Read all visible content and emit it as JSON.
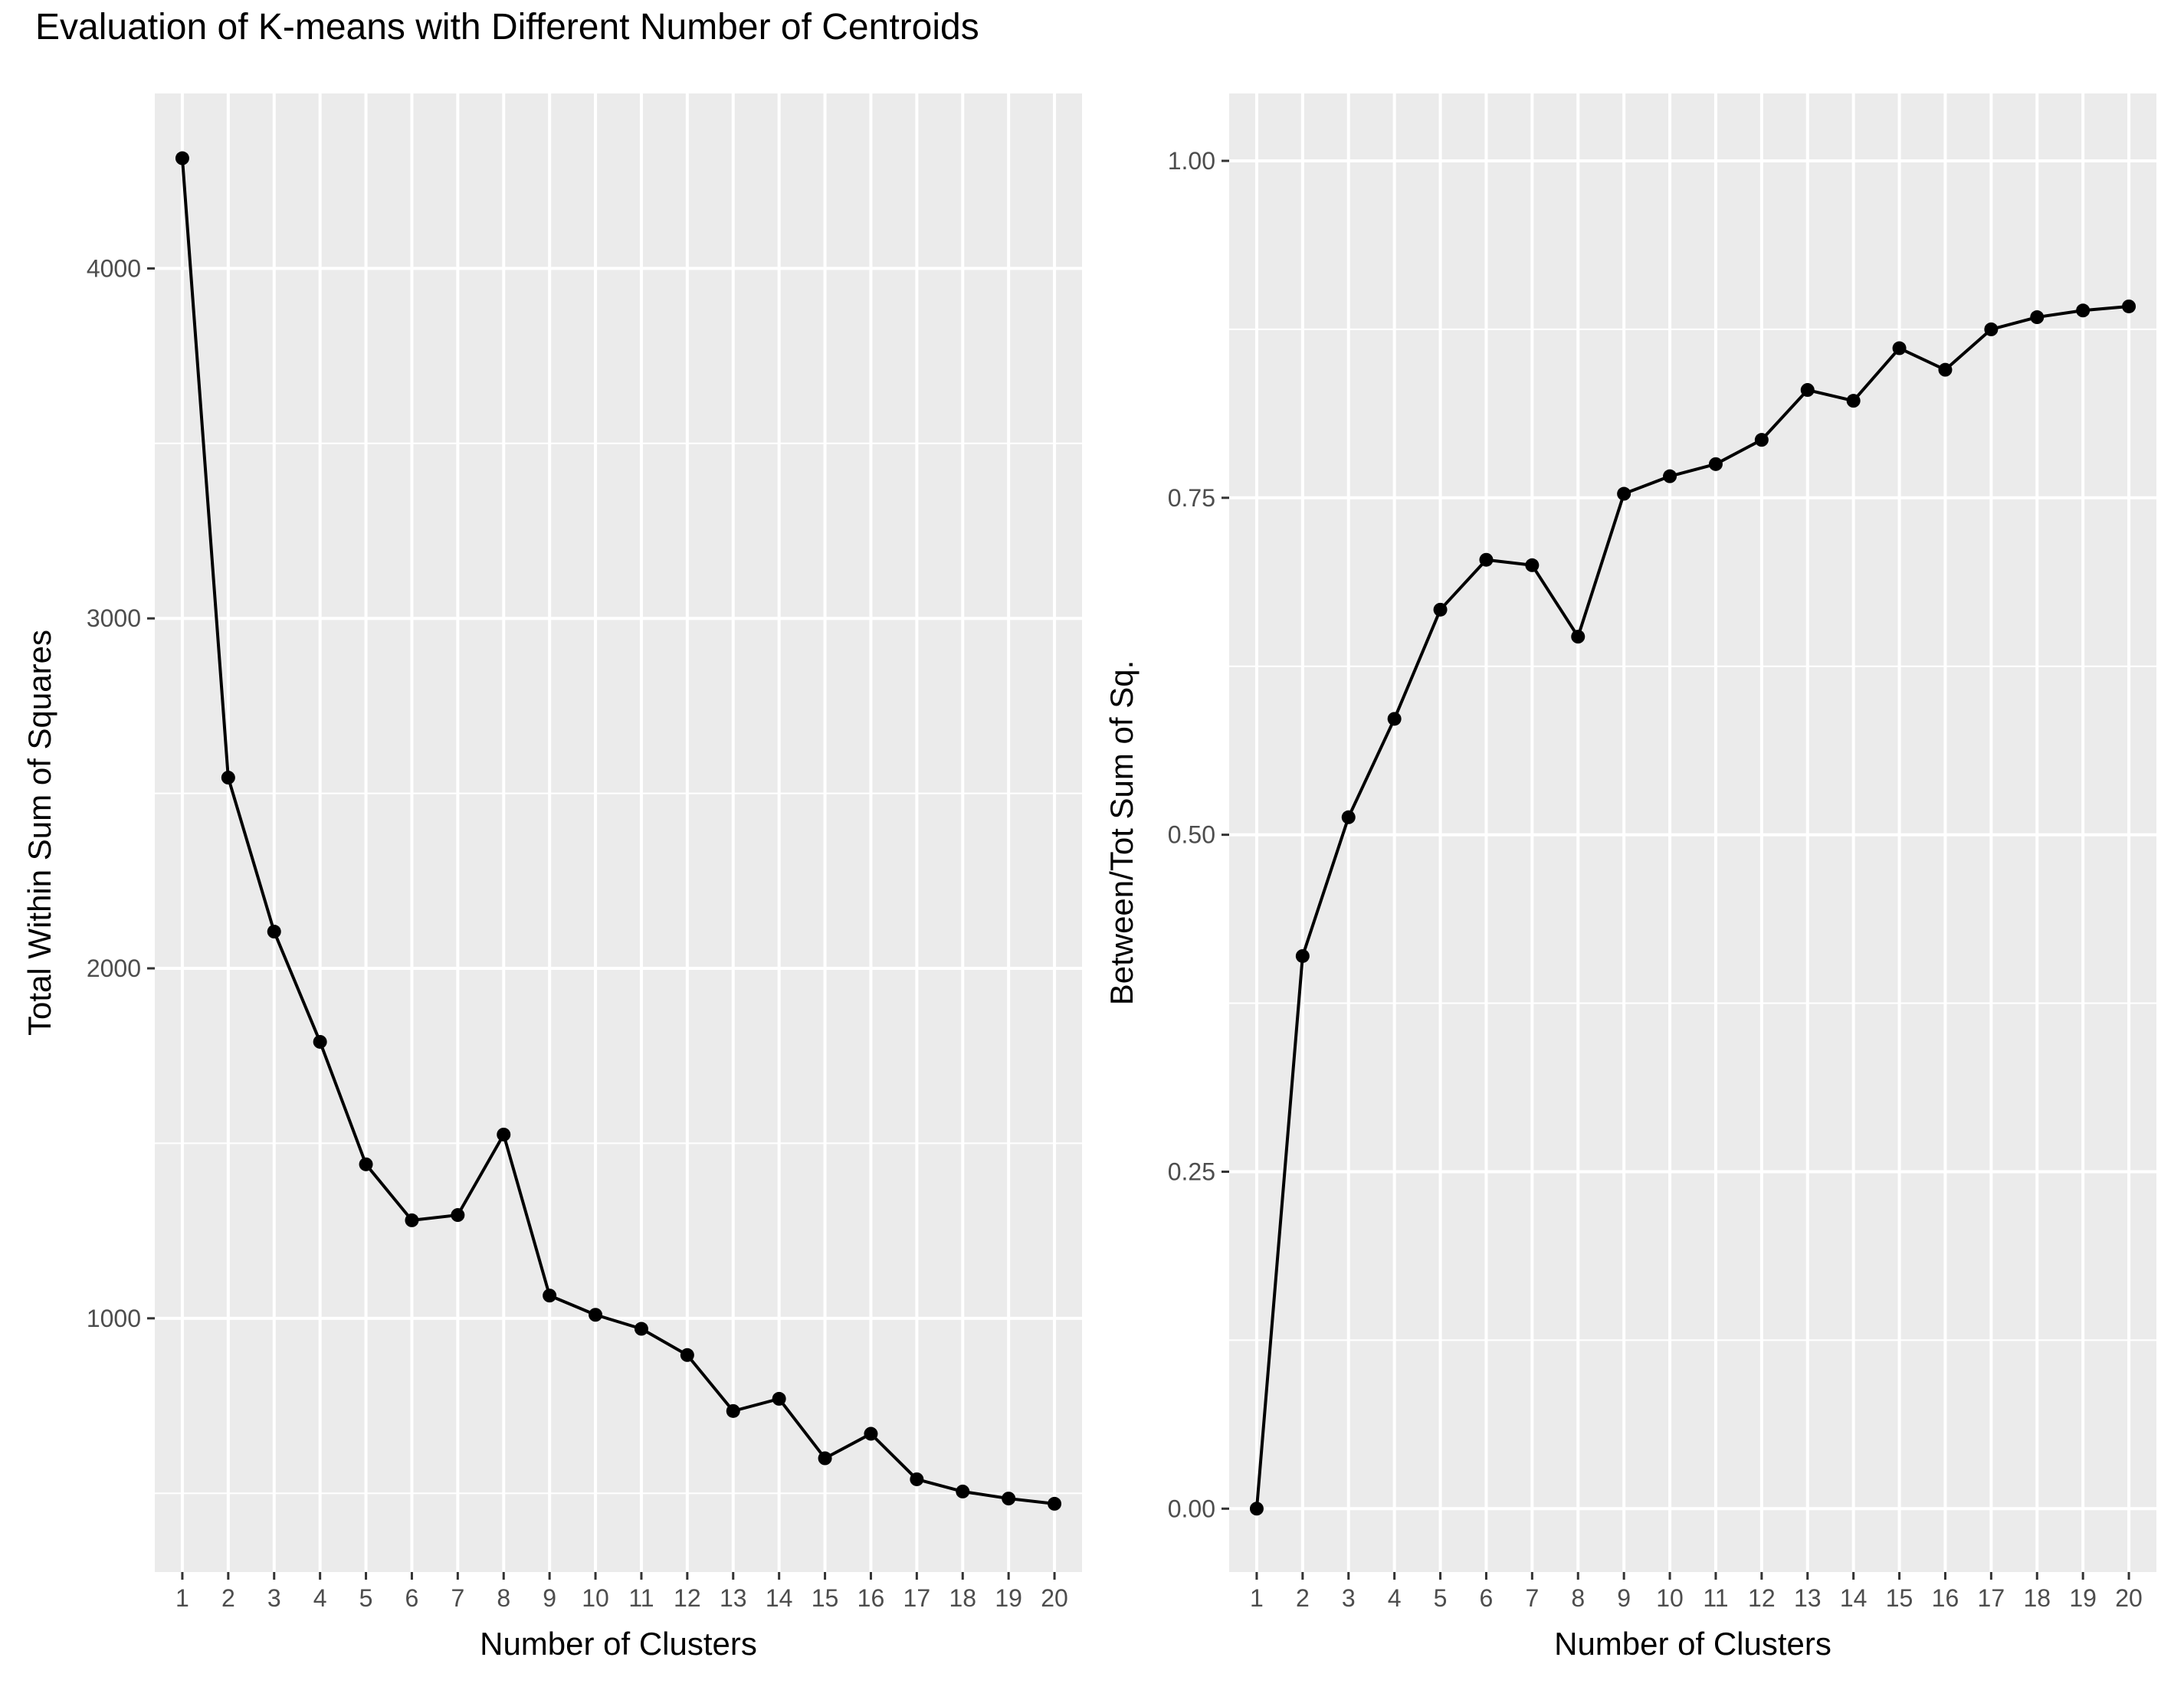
{
  "title": "Evaluation of K-means with Different Number of Centroids",
  "colors": {
    "panel": "#EBEBEB",
    "grid": "#FFFFFF",
    "line": "#000000",
    "tick_text": "#4D4D4D"
  },
  "chart_data": [
    {
      "type": "line",
      "xlabel": "Number of Clusters",
      "ylabel": "Total Within Sum of Squares",
      "x": [
        1,
        2,
        3,
        4,
        5,
        6,
        7,
        8,
        9,
        10,
        11,
        12,
        13,
        14,
        15,
        16,
        17,
        18,
        19,
        20
      ],
      "y": [
        4315,
        2545,
        2105,
        1790,
        1440,
        1280,
        1295,
        1525,
        1065,
        1010,
        970,
        895,
        735,
        770,
        600,
        670,
        540,
        505,
        485,
        470
      ],
      "xlim": [
        0.4,
        20.6
      ],
      "ylim": [
        275,
        4500
      ],
      "yticks": [
        1000,
        2000,
        3000,
        4000
      ],
      "ytick_labels": [
        "1000",
        "2000",
        "3000",
        "4000"
      ],
      "grid": true,
      "markers": true
    },
    {
      "type": "line",
      "xlabel": "Number of Clusters",
      "ylabel": "Between/Tot Sum of Sq.",
      "x": [
        1,
        2,
        3,
        4,
        5,
        6,
        7,
        8,
        9,
        10,
        11,
        12,
        13,
        14,
        15,
        16,
        17,
        18,
        19,
        20
      ],
      "y": [
        0.0,
        0.41,
        0.513,
        0.586,
        0.667,
        0.704,
        0.7,
        0.647,
        0.753,
        0.766,
        0.775,
        0.793,
        0.83,
        0.822,
        0.861,
        0.845,
        0.875,
        0.884,
        0.889,
        0.892
      ],
      "xlim": [
        0.4,
        20.6
      ],
      "ylim": [
        -0.047,
        1.05
      ],
      "yticks": [
        0.0,
        0.25,
        0.5,
        0.75,
        1.0
      ],
      "ytick_labels": [
        "0.00",
        "0.25",
        "0.50",
        "0.75",
        "1.00"
      ],
      "grid": true,
      "markers": true
    }
  ]
}
